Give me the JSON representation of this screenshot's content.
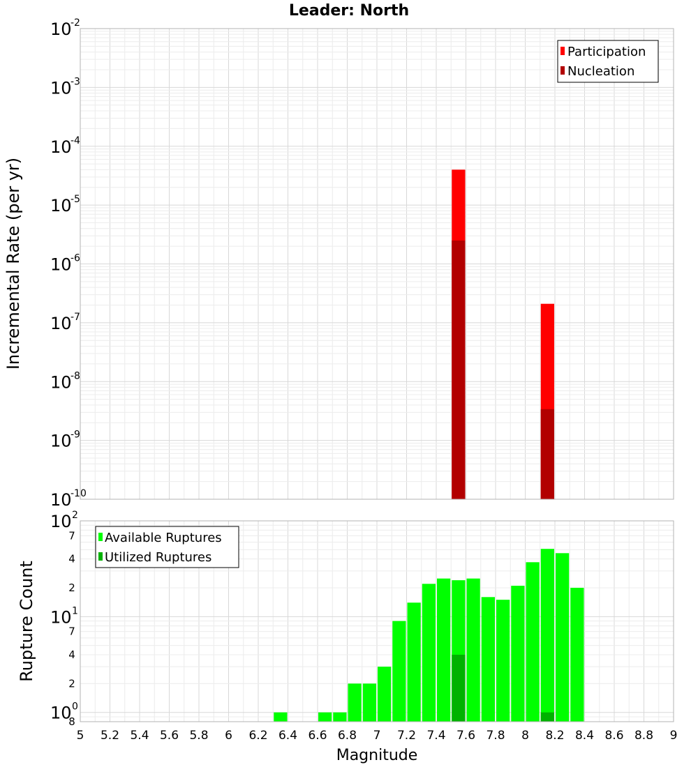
{
  "chart_data": [
    {
      "type": "bar",
      "title": "Leader: North",
      "ylabel": "Incremental Rate (per yr)",
      "xlabel": "",
      "yscale": "log",
      "ylim": [
        1e-10,
        0.01
      ],
      "xlim": [
        5,
        9
      ],
      "bin_width": 0.1,
      "y_ticks": [
        {
          "base": "10",
          "exp": "-2"
        },
        {
          "base": "10",
          "exp": "-3"
        },
        {
          "base": "10",
          "exp": "-4"
        },
        {
          "base": "10",
          "exp": "-5"
        },
        {
          "base": "10",
          "exp": "-6"
        },
        {
          "base": "10",
          "exp": "-7"
        },
        {
          "base": "10",
          "exp": "-8"
        },
        {
          "base": "10",
          "exp": "-9"
        },
        {
          "base": "10",
          "exp": "-10"
        }
      ],
      "legend_position": "top-right",
      "series": [
        {
          "name": "Participation",
          "color": "#ff0000",
          "points": [
            {
              "x": 7.55,
              "y": 4e-05
            },
            {
              "x": 8.15,
              "y": 2.1e-07
            }
          ]
        },
        {
          "name": "Nucleation",
          "color": "#b20000",
          "points": [
            {
              "x": 7.55,
              "y": 2.5e-06
            },
            {
              "x": 8.15,
              "y": 3.4e-09
            }
          ]
        }
      ]
    },
    {
      "type": "bar",
      "title": "",
      "ylabel": "Rupture Count",
      "xlabel": "Magnitude",
      "yscale": "log",
      "ylim": [
        0.8,
        100
      ],
      "xlim": [
        5,
        9
      ],
      "bin_width": 0.1,
      "y_ticks": [
        {
          "base": "10",
          "exp": "2",
          "value": 100
        },
        {
          "minor": "7",
          "value": 70
        },
        {
          "minor": "4",
          "value": 40
        },
        {
          "minor": "2",
          "value": 20
        },
        {
          "base": "10",
          "exp": "1",
          "value": 10
        },
        {
          "minor": "7",
          "value": 7
        },
        {
          "minor": "4",
          "value": 4
        },
        {
          "minor": "2",
          "value": 2
        },
        {
          "base": "10",
          "exp": "0",
          "value": 1
        },
        {
          "minor": "8",
          "value": 0.8
        }
      ],
      "x_tick_labels": [
        "5",
        "5.2",
        "5.4",
        "5.6",
        "5.8",
        "6",
        "6.2",
        "6.4",
        "6.6",
        "6.8",
        "7",
        "7.2",
        "7.4",
        "7.6",
        "7.8",
        "8",
        "8.2",
        "8.4",
        "8.6",
        "8.8",
        "9"
      ],
      "legend_position": "top-left",
      "series": [
        {
          "name": "Available Ruptures",
          "color": "#00ff00",
          "points": [
            {
              "x": 6.35,
              "y": 1
            },
            {
              "x": 6.65,
              "y": 1
            },
            {
              "x": 6.75,
              "y": 1
            },
            {
              "x": 6.85,
              "y": 2
            },
            {
              "x": 6.95,
              "y": 2
            },
            {
              "x": 7.05,
              "y": 3
            },
            {
              "x": 7.15,
              "y": 9
            },
            {
              "x": 7.25,
              "y": 14
            },
            {
              "x": 7.35,
              "y": 22
            },
            {
              "x": 7.45,
              "y": 25
            },
            {
              "x": 7.55,
              "y": 24
            },
            {
              "x": 7.65,
              "y": 25
            },
            {
              "x": 7.75,
              "y": 16
            },
            {
              "x": 7.85,
              "y": 15
            },
            {
              "x": 7.95,
              "y": 21
            },
            {
              "x": 8.05,
              "y": 37
            },
            {
              "x": 8.15,
              "y": 51
            },
            {
              "x": 8.25,
              "y": 46
            },
            {
              "x": 8.35,
              "y": 20
            }
          ]
        },
        {
          "name": "Utilized Ruptures",
          "color": "#00b200",
          "points": [
            {
              "x": 7.55,
              "y": 4
            },
            {
              "x": 8.15,
              "y": 1
            }
          ]
        }
      ]
    }
  ]
}
